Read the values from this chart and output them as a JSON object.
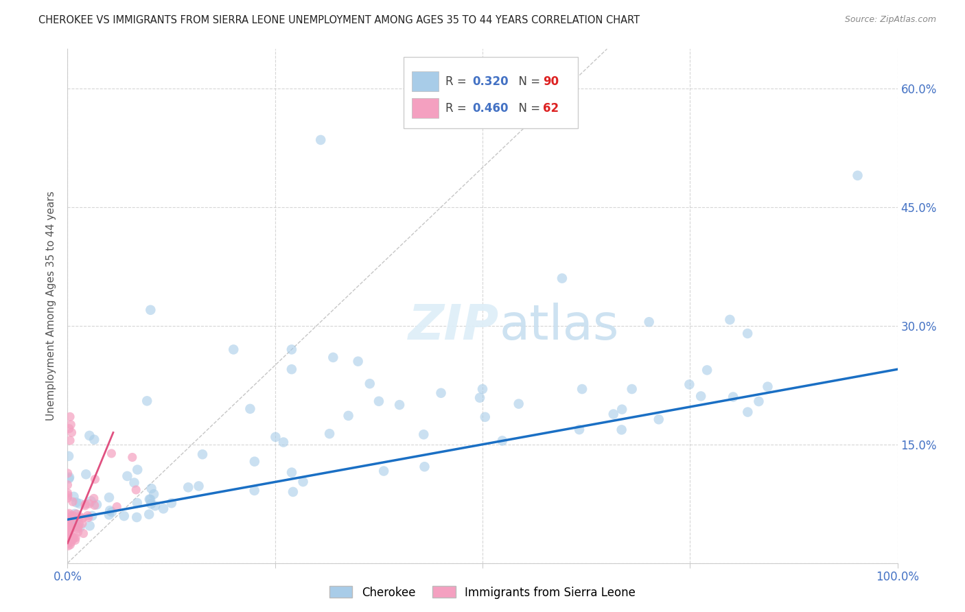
{
  "title": "CHEROKEE VS IMMIGRANTS FROM SIERRA LEONE UNEMPLOYMENT AMONG AGES 35 TO 44 YEARS CORRELATION CHART",
  "source": "Source: ZipAtlas.com",
  "ylabel": "Unemployment Among Ages 35 to 44 years",
  "xlim": [
    0.0,
    1.0
  ],
  "ylim": [
    0.0,
    0.65
  ],
  "yticks": [
    0.0,
    0.15,
    0.3,
    0.45,
    0.6
  ],
  "xticks": [
    0.0,
    0.25,
    0.5,
    0.75,
    1.0
  ],
  "xtick_labels": [
    "0.0%",
    "",
    "",
    "",
    "100.0%"
  ],
  "cherokee_color": "#a8cce8",
  "sierra_leone_color": "#f4a0c0",
  "cherokee_line_color": "#1a6fc4",
  "sierra_leone_line_color": "#e05080",
  "cherokee_R": 0.32,
  "cherokee_N": 90,
  "sierra_leone_R": 0.46,
  "sierra_leone_N": 62,
  "background_color": "#ffffff",
  "grid_color": "#cccccc",
  "tick_color": "#4472c4",
  "right_tick_labels": [
    "",
    "15.0%",
    "30.0%",
    "45.0%",
    "60.0%"
  ],
  "cherokee_line_x0": 0.0,
  "cherokee_line_y0": 0.055,
  "cherokee_line_x1": 1.0,
  "cherokee_line_y1": 0.245,
  "sierra_leone_line_x0": 0.0,
  "sierra_leone_line_y0": 0.025,
  "sierra_leone_line_x1": 0.055,
  "sierra_leone_line_y1": 0.165
}
